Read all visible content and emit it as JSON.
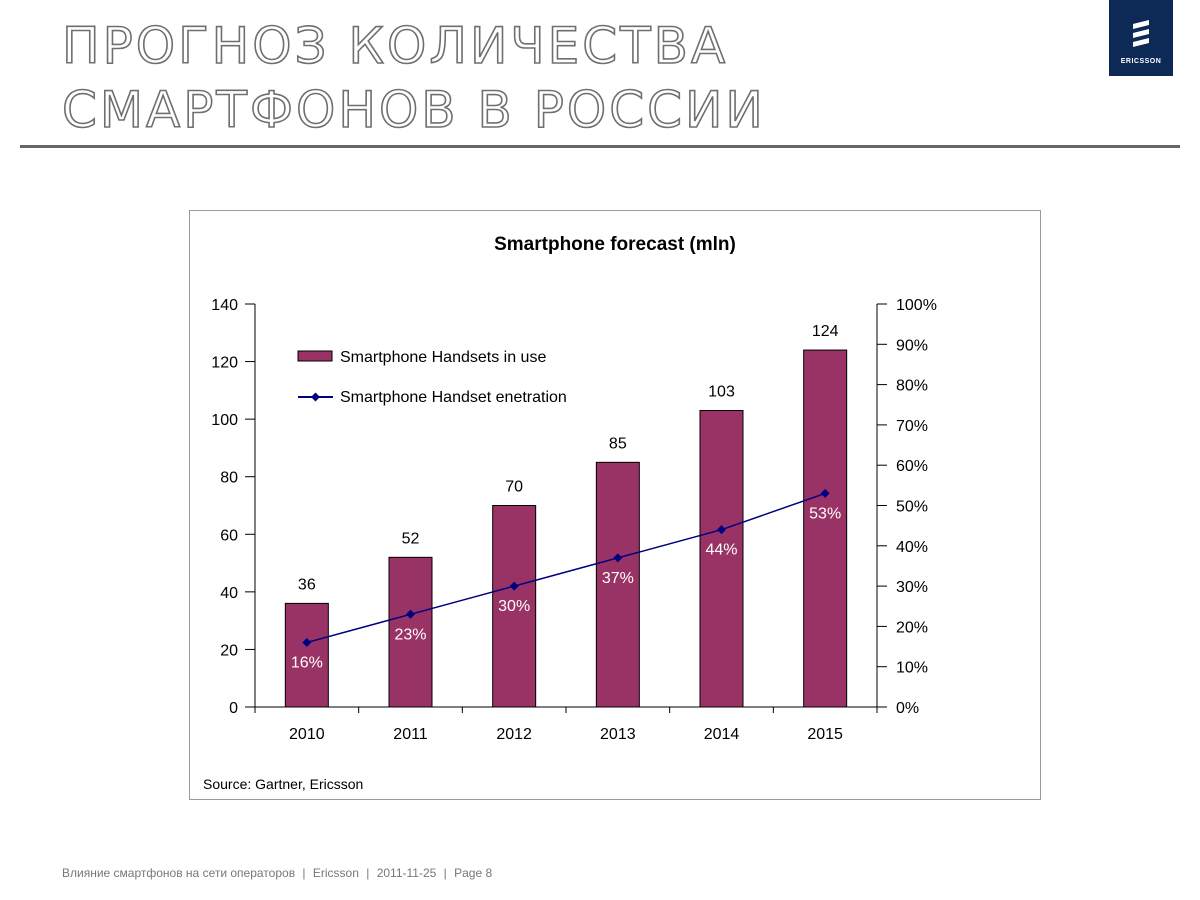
{
  "slide": {
    "title_line1": "ПРОГНОЗ КОЛИЧЕСТВА",
    "title_line2": "СМАРТФОНОВ В РОССИИ",
    "logo_text": "ERICSSON"
  },
  "footer": {
    "topic": "Влияние смартфонов на сети операторов",
    "separator": "|",
    "company": "Ericsson",
    "date": "2011-11-25",
    "page": "Page 8"
  },
  "colors": {
    "bar": "#993366",
    "line": "#000080",
    "title_rule": "#666666",
    "logo_bg": "#0c2a55"
  },
  "chart_data": {
    "type": "bar",
    "title": "Smartphone forecast (mln)",
    "source": "Source: Gartner, Ericsson",
    "categories": [
      "2010",
      "2011",
      "2012",
      "2013",
      "2014",
      "2015"
    ],
    "y_left": {
      "min": 0,
      "max": 140,
      "ticks": [
        0,
        20,
        40,
        60,
        80,
        100,
        120,
        140
      ]
    },
    "y_right": {
      "min": 0,
      "max": 100,
      "ticks": [
        "0%",
        "10%",
        "20%",
        "30%",
        "40%",
        "50%",
        "60%",
        "70%",
        "80%",
        "90%",
        "100%"
      ]
    },
    "legend_position": "top-left",
    "series": [
      {
        "name": "Smartphone Handsets in use",
        "type": "bar",
        "axis": "left",
        "values": [
          36,
          52,
          70,
          85,
          103,
          124
        ],
        "labels": [
          "36",
          "52",
          "70",
          "85",
          "103",
          "124"
        ]
      },
      {
        "name": "Smartphone Handset enetration",
        "type": "line",
        "axis": "right",
        "values": [
          16,
          23,
          30,
          37,
          44,
          53
        ],
        "labels": [
          "16%",
          "23%",
          "30%",
          "37%",
          "44%",
          "53%"
        ]
      }
    ]
  }
}
